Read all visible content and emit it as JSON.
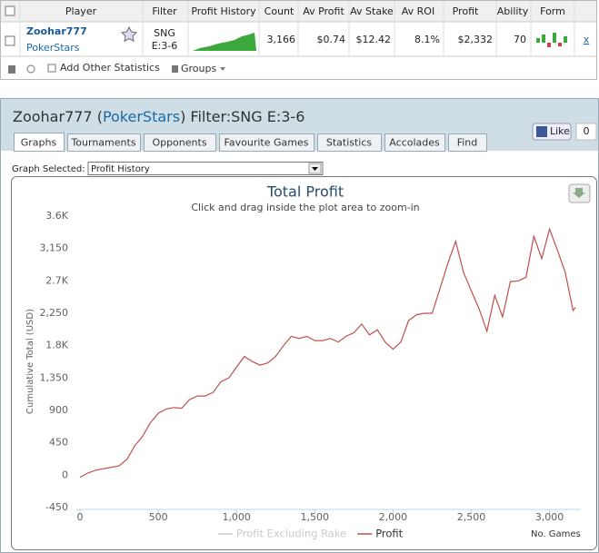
{
  "table": {
    "headers": [
      "Player",
      "Filter",
      "Profit History",
      "Count",
      "Av Profit",
      "Av Stake",
      "Av ROI",
      "Profit",
      "Ability",
      "Form"
    ],
    "row": {
      "player": "Zoohar777",
      "network": "PokerStars",
      "filter": [
        "SNG",
        "E:3-6"
      ],
      "count": "3,166",
      "av_profit": "$0.74",
      "av_stake": "$12.42",
      "av_roi": "8.1%",
      "profit": "$2,332",
      "ability": 70,
      "remove": "x"
    }
  },
  "toolbar": {
    "add": "Add Other Statistics",
    "groups": "Groups"
  },
  "panel": {
    "title_parts": [
      "Zoohar777 (",
      "PokerStars",
      ") Filter:SNG E:3-6"
    ],
    "tabs": [
      "Graphs",
      "Tournaments",
      "Opponents",
      "Favourite Games",
      "Statistics",
      "Accolades",
      "Find"
    ],
    "like": "Like",
    "like_count": 0,
    "graph_selected_label": "Graph Selected:",
    "graph_selected": "Profit History"
  },
  "chart_data": {
    "type": "line",
    "title": "Total Profit",
    "subtitle": "Click and drag inside the plot area to zoom-in",
    "y_label": "Cumulative Total (USD)",
    "x_label": "No. Games",
    "x": [
      0,
      50,
      100,
      150,
      200,
      250,
      300,
      350,
      400,
      450,
      500,
      550,
      600,
      650,
      700,
      750,
      800,
      850,
      900,
      950,
      1000,
      1050,
      1100,
      1150,
      1200,
      1250,
      1300,
      1350,
      1400,
      1450,
      1500,
      1550,
      1600,
      1650,
      1700,
      1750,
      1800,
      1850,
      1900,
      1950,
      2000,
      2050,
      2100,
      2150,
      2200,
      2250,
      2300,
      2350,
      2400,
      2450,
      2500,
      2550,
      2600,
      2650,
      2700,
      2750,
      2800,
      2850,
      2900,
      2950,
      3000,
      3050,
      3100,
      3150,
      3166
    ],
    "series": [
      {
        "name": "Profit Excluding Rake",
        "color": "#cccccc",
        "visible": false
      },
      {
        "name": "Profit",
        "color": "#c0504d",
        "visible": true,
        "values": [
          -30,
          30,
          70,
          90,
          110,
          130,
          220,
          410,
          540,
          730,
          860,
          920,
          940,
          930,
          1050,
          1100,
          1100,
          1150,
          1300,
          1350,
          1500,
          1650,
          1580,
          1530,
          1560,
          1650,
          1800,
          1930,
          1900,
          1930,
          1870,
          1870,
          1900,
          1850,
          1930,
          1980,
          2100,
          1950,
          2020,
          1850,
          1750,
          1850,
          2150,
          2230,
          2250,
          2250,
          2590,
          2940,
          3250,
          2820,
          2560,
          2310,
          2000,
          2500,
          2200,
          2690,
          2700,
          2750,
          3320,
          3010,
          3420,
          3130,
          2820,
          2290,
          2330
        ]
      }
    ],
    "xlim": [
      0,
      3200
    ],
    "ylim": [
      -450,
      3600
    ],
    "xticks": [
      0,
      500,
      {
        "value": 1000,
        "label": "1,000"
      },
      {
        "value": 1500,
        "label": "1,500"
      },
      {
        "value": 2000,
        "label": "2,000"
      },
      {
        "value": 2500,
        "label": "2,500"
      },
      {
        "value": 3000,
        "label": "3,000"
      }
    ],
    "yticks": [
      -450,
      0,
      450,
      900,
      {
        "value": 1350,
        "label": "1,350"
      },
      {
        "value": 1800,
        "label": "1.8K"
      },
      {
        "value": 2250,
        "label": "2,250"
      },
      {
        "value": 2700,
        "label": "2.7K"
      },
      {
        "value": 3150,
        "label": "3,150"
      },
      {
        "value": 3600,
        "label": "3.6K"
      }
    ],
    "grid": false,
    "legend": "bottom"
  }
}
